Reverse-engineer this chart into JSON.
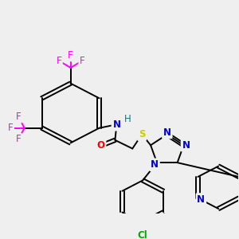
{
  "bg_color": "#efefef",
  "colors": {
    "bond": "#000000",
    "F": "#ff00ff",
    "N": "#0000cc",
    "O": "#ff0000",
    "S": "#cccc00",
    "Cl": "#00aa00",
    "H": "#008080"
  },
  "lw": 1.4,
  "fs": 8.5
}
